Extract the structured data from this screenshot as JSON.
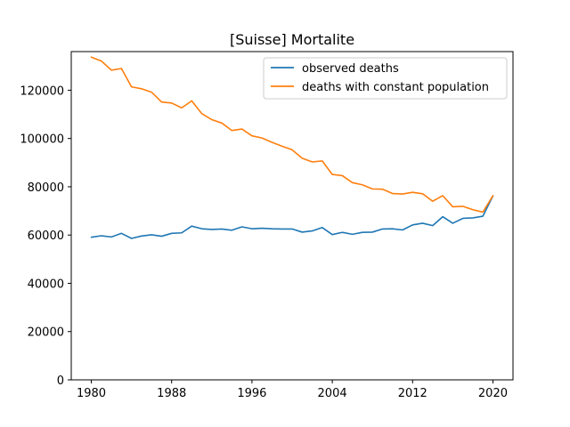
{
  "chart_data": {
    "type": "line",
    "title": "[Suisse] Mortalite",
    "xlabel": "",
    "ylabel": "",
    "xlim": [
      1978,
      2022
    ],
    "ylim": [
      0,
      136000
    ],
    "x_ticks": [
      1980,
      1988,
      1996,
      2004,
      2012,
      2020
    ],
    "y_ticks": [
      0,
      20000,
      40000,
      60000,
      80000,
      100000,
      120000
    ],
    "grid": false,
    "legend_position": "top-right",
    "x": [
      1980,
      1981,
      1982,
      1983,
      1984,
      1985,
      1986,
      1987,
      1988,
      1989,
      1990,
      1991,
      1992,
      1993,
      1994,
      1995,
      1996,
      1997,
      1998,
      1999,
      2000,
      2001,
      2002,
      2003,
      2004,
      2005,
      2006,
      2007,
      2008,
      2009,
      2010,
      2011,
      2012,
      2013,
      2014,
      2015,
      2016,
      2017,
      2018,
      2019,
      2020
    ],
    "series": [
      {
        "name": "observed deaths",
        "color": "#1f77b4",
        "values": [
          59100,
          59700,
          59200,
          60700,
          58600,
          59600,
          60100,
          59500,
          60700,
          60900,
          63700,
          62600,
          62300,
          62500,
          62000,
          63400,
          62600,
          62800,
          62600,
          62500,
          62500,
          61200,
          61700,
          63100,
          60200,
          61100,
          60300,
          61100,
          61200,
          62500,
          62600,
          62100,
          64200,
          64900,
          63900,
          67600,
          64900,
          66900,
          67100,
          67800,
          76200
        ]
      },
      {
        "name": "deaths with constant population",
        "color": "#ff7f0e",
        "values": [
          133700,
          132100,
          128300,
          129000,
          121400,
          120600,
          119200,
          115100,
          114700,
          112700,
          115600,
          110300,
          107800,
          106400,
          103300,
          103900,
          101100,
          100200,
          98400,
          96800,
          95300,
          91800,
          90300,
          90700,
          85100,
          84600,
          81700,
          80800,
          79100,
          79000,
          77200,
          77000,
          77700,
          77100,
          74000,
          76300,
          71700,
          71900,
          70500,
          69500,
          76300
        ]
      }
    ]
  }
}
